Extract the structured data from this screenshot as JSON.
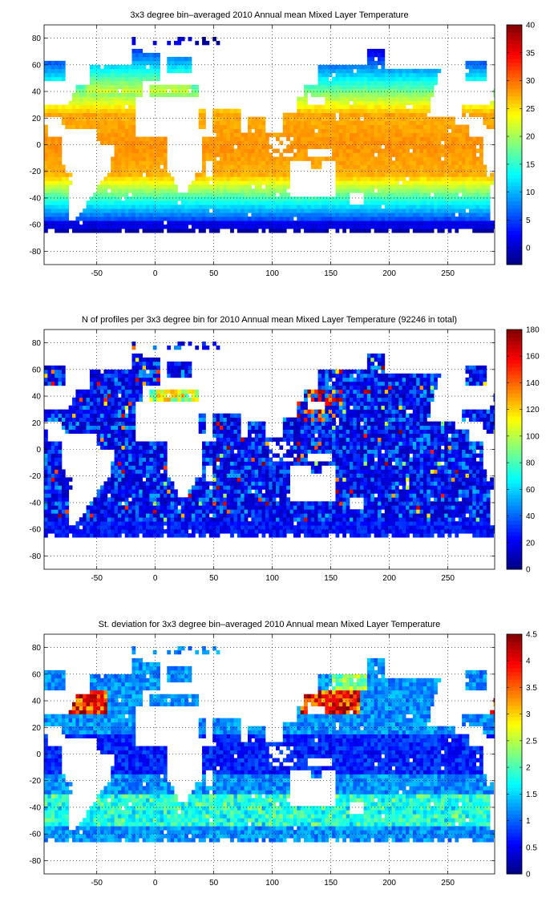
{
  "chart_data": [
    {
      "type": "heatmap",
      "title": "3x3 degree bin–averaged 2010 Annual mean Mixed Layer Temperature",
      "xlabel": "",
      "ylabel": "",
      "xlim": [
        -95,
        290
      ],
      "ylim": [
        -90,
        90
      ],
      "x_ticks": [
        -50,
        0,
        50,
        100,
        150,
        200,
        250
      ],
      "y_ticks": [
        -80,
        -60,
        -40,
        -20,
        0,
        20,
        40,
        60,
        80
      ],
      "grid": true,
      "colorbar": {
        "min": -3,
        "max": 40,
        "ticks": [
          0,
          5,
          10,
          15,
          20,
          25,
          30,
          35,
          40
        ]
      },
      "bin_size_deg": 3,
      "value_pattern": {
        "tropics_0_to_20": [
          27,
          29
        ],
        "lat_40": [
          12,
          18
        ],
        "lat_minus_40": [
          12,
          15
        ],
        "lat_minus_60": [
          0,
          3
        ],
        "lat_minus_70": [
          -2,
          0
        ]
      }
    },
    {
      "type": "heatmap",
      "title": "N of profiles per 3x3 degree bin for 2010 Annual mean Mixed Layer Temperature  (92246 in total)",
      "xlabel": "",
      "ylabel": "",
      "xlim": [
        -95,
        290
      ],
      "ylim": [
        -90,
        90
      ],
      "x_ticks": [
        -50,
        0,
        50,
        100,
        150,
        200,
        250
      ],
      "y_ticks": [
        -80,
        -60,
        -40,
        -20,
        0,
        20,
        40,
        60,
        80
      ],
      "grid": true,
      "colorbar": {
        "min": 0,
        "max": 180,
        "ticks": [
          0,
          20,
          40,
          60,
          80,
          100,
          120,
          140,
          160,
          180
        ]
      },
      "bin_size_deg": 3,
      "total_profiles": 92246,
      "value_pattern": {
        "typical_open_ocean": [
          10,
          40
        ],
        "hotspots_NW_Pacific_and_Mediterranean": [
          120,
          180
        ]
      }
    },
    {
      "type": "heatmap",
      "title": "St. deviation for 3x3 degree bin–averaged 2010 Annual mean Mixed Layer Temperature",
      "xlabel": "",
      "ylabel": "",
      "xlim": [
        -95,
        290
      ],
      "ylim": [
        -90,
        90
      ],
      "x_ticks": [
        -50,
        0,
        50,
        100,
        150,
        200,
        250
      ],
      "y_ticks": [
        -80,
        -60,
        -40,
        -20,
        0,
        20,
        40,
        60,
        80
      ],
      "grid": true,
      "colorbar": {
        "min": 0,
        "max": 4.5,
        "ticks": [
          0,
          0.5,
          1,
          1.5,
          2,
          2.5,
          3,
          3.5,
          4,
          4.5
        ]
      },
      "bin_size_deg": 3,
      "value_pattern": {
        "tropics": [
          0.3,
          1.0
        ],
        "kuroshio_and_gulf_stream_35_45N": [
          3.5,
          4.5
        ],
        "southern_ocean_40S": [
          1.0,
          2.0
        ]
      }
    }
  ]
}
